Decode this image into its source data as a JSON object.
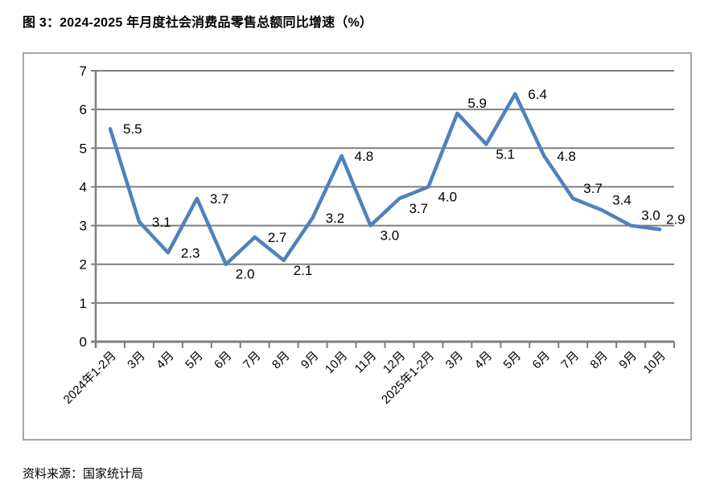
{
  "page": {
    "title": "图 3：2024-2025 年月度社会消费品零售总额同比增速（%）",
    "source": "资料来源：国家统计局"
  },
  "chart_data": {
    "type": "line",
    "title": "图 3：2024-2025 年月度社会消费品零售总额同比增速（%）",
    "categories": [
      "2024年1-2月",
      "3月",
      "4月",
      "5月",
      "6月",
      "7月",
      "8月",
      "9月",
      "10月",
      "11月",
      "12月",
      "2025年1-2月",
      "3月",
      "4月",
      "5月",
      "6月",
      "7月",
      "8月",
      "9月",
      "10月"
    ],
    "values": [
      5.5,
      3.1,
      2.3,
      3.7,
      2.0,
      2.7,
      2.1,
      3.2,
      4.8,
      3.0,
      3.7,
      4.0,
      5.9,
      5.1,
      6.4,
      4.8,
      3.7,
      3.4,
      3.0,
      2.9
    ],
    "ylim": [
      0,
      7
    ],
    "yticks": [
      0,
      1,
      2,
      3,
      4,
      5,
      6,
      7
    ],
    "grid": true,
    "legend": "none",
    "xlabel": "",
    "ylabel": "",
    "label_positions": [
      "right",
      "right",
      "right",
      "right",
      "below",
      "right",
      "below",
      "right",
      "right",
      "below",
      "below",
      "below",
      "above",
      "below",
      "right",
      "right",
      "above",
      "above",
      "above",
      "above"
    ],
    "line_color": "#4F81BD",
    "grid_color": "#7F7F7F",
    "axis_color": "#7F7F7F",
    "frame_color": "#A6A6A6",
    "text_color": "#000000"
  }
}
